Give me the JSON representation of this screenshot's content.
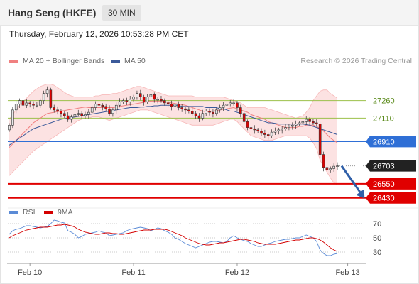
{
  "header": {
    "instrument": "Hang Seng (HKFE)",
    "timeframe": "30 MIN",
    "datetime": "Thursday, February 12, 2026 10:53:28 PM CET"
  },
  "legend": {
    "ma20": "MA 20 + Bollinger Bands",
    "ma50": "MA 50",
    "credit": "Research © 2026 Trading Central",
    "rsi": "RSI",
    "rsi_ma": "9MA"
  },
  "colors": {
    "up": "#e8e8e8",
    "down": "#e00000",
    "band": "#fbd6d6",
    "ma20": "#f08080",
    "ma50": "#3b5a9a",
    "resistance": "#9bc04a",
    "pivot": "#2f6fd6",
    "support": "#e00000",
    "current": "#222222",
    "rsi": "#5b8bd6",
    "rsi_ma": "#d40000",
    "arrow": "#2f5fa8"
  },
  "chart_data": [
    {
      "type": "candlestick",
      "ylim": [
        26380,
        27530
      ],
      "x_ticks": [
        "Feb 10",
        "Feb 11",
        "Feb 12",
        "Feb 13"
      ],
      "x_tick_index": [
        6,
        36,
        66,
        98
      ],
      "levels": [
        {
          "value": 27260,
          "label": "27260",
          "kind": "resistance"
        },
        {
          "value": 27110,
          "label": "27110",
          "kind": "resistance"
        },
        {
          "value": 26910,
          "label": "26910",
          "kind": "pivot"
        },
        {
          "value": 26703,
          "label": "26703",
          "kind": "current"
        },
        {
          "value": 26550,
          "label": "26550",
          "kind": "support"
        },
        {
          "value": 26430,
          "label": "26430",
          "kind": "support"
        }
      ],
      "closes": [
        27050,
        27180,
        27230,
        27260,
        27220,
        27240,
        27230,
        27220,
        27220,
        27260,
        27320,
        27350,
        27200,
        27180,
        27170,
        27150,
        27130,
        27100,
        27120,
        27140,
        27150,
        27130,
        27140,
        27160,
        27200,
        27230,
        27220,
        27210,
        27190,
        27150,
        27180,
        27220,
        27250,
        27260,
        27250,
        27270,
        27290,
        27320,
        27290,
        27250,
        27290,
        27310,
        27270,
        27270,
        27260,
        27240,
        27230,
        27210,
        27230,
        27200,
        27190,
        27180,
        27170,
        27150,
        27130,
        27110,
        27150,
        27170,
        27160,
        27150,
        27180,
        27200,
        27220,
        27230,
        27240,
        27240,
        27200,
        27150,
        27080,
        27030,
        27020,
        27010,
        27000,
        26980,
        26970,
        26960,
        26990,
        27000,
        27010,
        27020,
        27030,
        27040,
        27050,
        27060,
        27070,
        27080,
        27100,
        27080,
        27070,
        27060,
        26800,
        26690,
        26670,
        26680,
        26700,
        26703
      ],
      "ma20": [
        26860,
        26890,
        26920,
        26950,
        26980,
        27010,
        27040,
        27070,
        27090,
        27110,
        27130,
        27150,
        27155,
        27160,
        27165,
        27170,
        27175,
        27180,
        27185,
        27190,
        27195,
        27200,
        27205,
        27200,
        27200,
        27200,
        27200,
        27200,
        27200,
        27200,
        27200,
        27205,
        27210,
        27215,
        27220,
        27225,
        27230,
        27235,
        27240,
        27245,
        27250,
        27255,
        27255,
        27255,
        27255,
        27250,
        27245,
        27240,
        27235,
        27230,
        27225,
        27220,
        27210,
        27200,
        27190,
        27180,
        27170,
        27165,
        27165,
        27170,
        27175,
        27180,
        27185,
        27190,
        27195,
        27200,
        27190,
        27180,
        27170,
        27160,
        27140,
        27130,
        27120,
        27110,
        27100,
        27080,
        27070,
        27060,
        27050,
        27040,
        27030,
        27030,
        27030,
        27030,
        27040,
        27040,
        27050,
        27050,
        27050,
        27040,
        27020,
        27000,
        26970,
        26940,
        26920,
        26900
      ],
      "ma50": [
        26880,
        26900,
        26920,
        26940,
        26960,
        26980,
        27000,
        27020,
        27030,
        27040,
        27050,
        27060,
        27070,
        27080,
        27090,
        27100,
        27105,
        27110,
        27115,
        27120,
        27125,
        27130,
        27135,
        27140,
        27145,
        27150,
        27155,
        27160,
        27165,
        27170,
        27175,
        27180,
        27185,
        27190,
        27195,
        27200,
        27200,
        27200,
        27205,
        27205,
        27210,
        27210,
        27215,
        27215,
        27220,
        27220,
        27220,
        27220,
        27220,
        27220,
        27210,
        27210,
        27210,
        27210,
        27210,
        27210,
        27210,
        27200,
        27200,
        27200,
        27200,
        27190,
        27190,
        27180,
        27170,
        27170,
        27160,
        27150,
        27140,
        27130,
        27120,
        27110,
        27100,
        27090,
        27080,
        27070,
        27070,
        27065,
        27060,
        27060,
        27060,
        27060,
        27060,
        27060,
        27060,
        27060,
        27055,
        27050,
        27040,
        27030,
        27020,
        27010,
        27000,
        26990,
        26980,
        26970
      ],
      "band_upper": [
        27100,
        27140,
        27180,
        27220,
        27250,
        27280,
        27310,
        27340,
        27360,
        27380,
        27390,
        27400,
        27400,
        27390,
        27370,
        27350,
        27330,
        27310,
        27300,
        27290,
        27290,
        27290,
        27290,
        27290,
        27290,
        27300,
        27300,
        27310,
        27310,
        27310,
        27320,
        27320,
        27330,
        27340,
        27350,
        27360,
        27370,
        27380,
        27380,
        27370,
        27360,
        27350,
        27340,
        27330,
        27320,
        27310,
        27300,
        27300,
        27300,
        27300,
        27300,
        27300,
        27300,
        27300,
        27290,
        27290,
        27290,
        27290,
        27290,
        27290,
        27290,
        27290,
        27290,
        27280,
        27270,
        27260,
        27250,
        27240,
        27220,
        27200,
        27200,
        27200,
        27200,
        27200,
        27200,
        27190,
        27180,
        27170,
        27160,
        27150,
        27140,
        27130,
        27120,
        27110,
        27120,
        27130,
        27160,
        27200,
        27260,
        27300,
        27340,
        27350,
        27350,
        27320,
        27300,
        27280
      ],
      "band_lower": [
        26620,
        26650,
        26680,
        26710,
        26740,
        26770,
        26800,
        26830,
        26850,
        26870,
        26890,
        26910,
        26930,
        26950,
        26970,
        26990,
        27010,
        27030,
        27050,
        27070,
        27090,
        27100,
        27110,
        27110,
        27120,
        27120,
        27120,
        27110,
        27100,
        27090,
        27100,
        27110,
        27120,
        27130,
        27140,
        27150,
        27160,
        27170,
        27180,
        27180,
        27180,
        27170,
        27160,
        27150,
        27140,
        27130,
        27120,
        27110,
        27100,
        27090,
        27080,
        27070,
        27060,
        27050,
        27050,
        27050,
        27050,
        27050,
        27050,
        27050,
        27060,
        27070,
        27080,
        27090,
        27100,
        27100,
        27080,
        27050,
        27020,
        26990,
        26960,
        26950,
        26940,
        26930,
        26920,
        26920,
        26920,
        26930,
        26940,
        26950,
        26960,
        26960,
        26960,
        26960,
        26960,
        26960,
        26960,
        26940,
        26900,
        26850,
        26750,
        26700,
        26650,
        26600,
        26560,
        26540
      ]
    },
    {
      "type": "line",
      "ylim": [
        18,
        80
      ],
      "y_ticks": [
        70,
        50,
        30
      ],
      "series": [
        {
          "name": "RSI",
          "values": [
            55,
            60,
            62,
            63,
            65,
            67,
            67,
            66,
            65,
            64,
            65,
            66,
            70,
            75,
            74,
            72,
            71,
            60,
            58,
            55,
            50,
            52,
            55,
            56,
            57,
            58,
            60,
            58,
            57,
            53,
            54,
            55,
            56,
            57,
            60,
            62,
            63,
            64,
            65,
            64,
            63,
            60,
            62,
            64,
            63,
            60,
            58,
            55,
            50,
            48,
            45,
            42,
            40,
            38,
            36,
            38,
            40,
            42,
            44,
            45,
            45,
            44,
            43,
            45,
            50,
            53,
            50,
            48,
            46,
            45,
            42,
            40,
            38,
            38,
            40,
            42,
            43,
            45,
            46,
            47,
            48,
            48,
            49,
            50,
            50,
            52,
            54,
            52,
            50,
            45,
            33,
            28,
            25,
            25,
            27,
            28
          ]
        },
        {
          "name": "9MA",
          "values": [
            50,
            53,
            55,
            57,
            59,
            61,
            62,
            63,
            64,
            65,
            65,
            65,
            66,
            67,
            68,
            68,
            69,
            68,
            67,
            65,
            62,
            60,
            58,
            57,
            56,
            55,
            55,
            56,
            57,
            57,
            56,
            56,
            55,
            55,
            56,
            57,
            58,
            59,
            60,
            61,
            61,
            61,
            62,
            62,
            62,
            62,
            61,
            59,
            57,
            55,
            53,
            50,
            48,
            46,
            44,
            42,
            41,
            40,
            40,
            41,
            42,
            43,
            43,
            44,
            45,
            46,
            47,
            48,
            48,
            47,
            46,
            45,
            43,
            42,
            41,
            41,
            41,
            41,
            42,
            43,
            44,
            45,
            46,
            47,
            47,
            48,
            49,
            50,
            50,
            49,
            47,
            44,
            40,
            36,
            33,
            31
          ]
        }
      ]
    }
  ]
}
